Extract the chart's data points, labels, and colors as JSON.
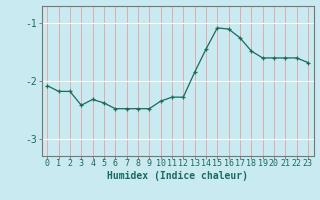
{
  "x": [
    0,
    1,
    2,
    3,
    4,
    5,
    6,
    7,
    8,
    9,
    10,
    11,
    12,
    13,
    14,
    15,
    16,
    17,
    18,
    19,
    20,
    21,
    22,
    23
  ],
  "y": [
    -2.08,
    -2.18,
    -2.18,
    -2.42,
    -2.32,
    -2.38,
    -2.48,
    -2.48,
    -2.48,
    -2.48,
    -2.35,
    -2.28,
    -2.28,
    -1.85,
    -1.45,
    -1.08,
    -1.1,
    -1.25,
    -1.48,
    -1.6,
    -1.6,
    -1.6,
    -1.6,
    -1.68
  ],
  "xlim": [
    -0.5,
    23.5
  ],
  "ylim": [
    -3.3,
    -0.7
  ],
  "yticks": [
    -3,
    -2,
    -1
  ],
  "xticks": [
    0,
    1,
    2,
    3,
    4,
    5,
    6,
    7,
    8,
    9,
    10,
    11,
    12,
    13,
    14,
    15,
    16,
    17,
    18,
    19,
    20,
    21,
    22,
    23
  ],
  "xlabel": "Humidex (Indice chaleur)",
  "line_color": "#1a6b5a",
  "marker": "+",
  "bg_color": "#c8eaf0",
  "vgrid_color": "#e8a0a0",
  "hgrid_color": "#ffffff",
  "spine_color": "#777777",
  "label_color": "#1a6b5a",
  "xlabel_fontsize": 7,
  "tick_fontsize": 6,
  "ytick_fontsize": 7
}
